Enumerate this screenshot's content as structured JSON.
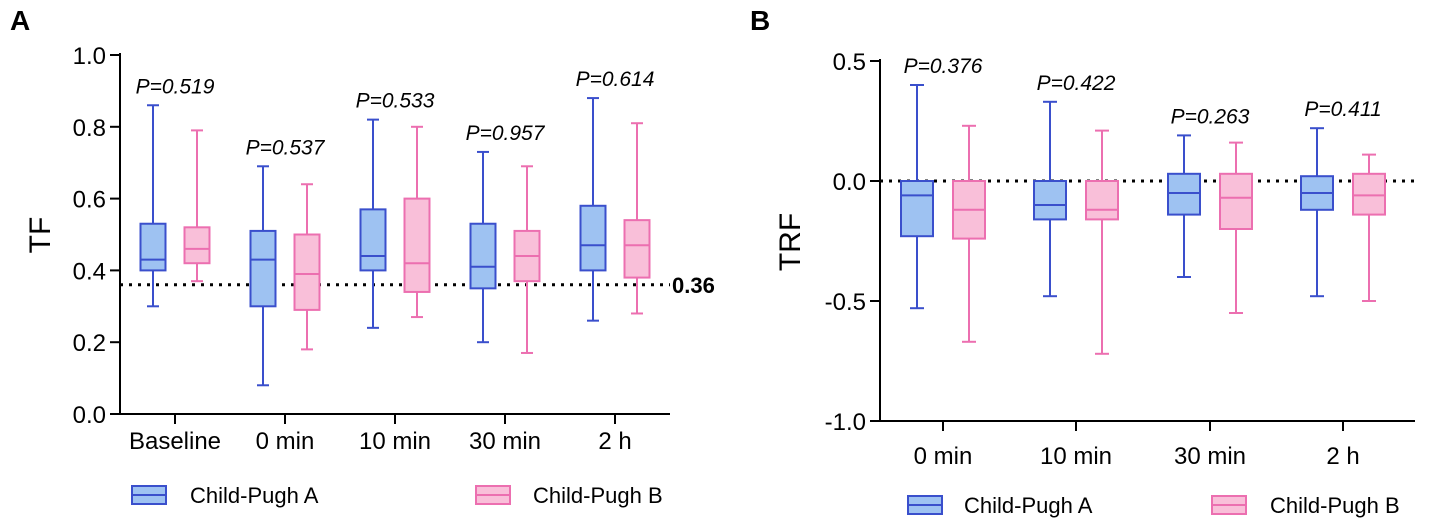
{
  "colors": {
    "group_a_fill": "#9ec2f2",
    "group_a_stroke": "#3a4fcc",
    "group_b_fill": "#f9bfd9",
    "group_b_stroke": "#ec6fb0"
  },
  "legend": {
    "group_a": "Child-Pugh A",
    "group_b": "Child-Pugh B"
  },
  "chart_data": [
    {
      "panel": "A",
      "type": "boxplot",
      "ylabel": "TF",
      "ylim": [
        0.0,
        1.0
      ],
      "yticks": [
        "0.0",
        "0.2",
        "0.4",
        "0.6",
        "0.8",
        "1.0"
      ],
      "yticks_values": [
        0.0,
        0.2,
        0.4,
        0.6,
        0.8,
        1.0
      ],
      "categories": [
        "Baseline",
        "0 min",
        "10 min",
        "30 min",
        "2 h"
      ],
      "p_values": [
        "P=0.519",
        "P=0.537",
        "P=0.533",
        "P=0.957",
        "P=0.614"
      ],
      "reference_line": {
        "value": 0.36,
        "label": "0.36"
      },
      "series": [
        {
          "name": "Child-Pugh A",
          "boxes": [
            {
              "min": 0.3,
              "q1": 0.4,
              "median": 0.43,
              "q3": 0.53,
              "max": 0.86
            },
            {
              "min": 0.08,
              "q1": 0.3,
              "median": 0.43,
              "q3": 0.51,
              "max": 0.69
            },
            {
              "min": 0.24,
              "q1": 0.4,
              "median": 0.44,
              "q3": 0.57,
              "max": 0.82
            },
            {
              "min": 0.2,
              "q1": 0.35,
              "median": 0.41,
              "q3": 0.53,
              "max": 0.73
            },
            {
              "min": 0.26,
              "q1": 0.4,
              "median": 0.47,
              "q3": 0.58,
              "max": 0.88
            }
          ]
        },
        {
          "name": "Child-Pugh B",
          "boxes": [
            {
              "min": 0.37,
              "q1": 0.42,
              "median": 0.46,
              "q3": 0.52,
              "max": 0.79
            },
            {
              "min": 0.18,
              "q1": 0.29,
              "median": 0.39,
              "q3": 0.5,
              "max": 0.64
            },
            {
              "min": 0.27,
              "q1": 0.34,
              "median": 0.42,
              "q3": 0.6,
              "max": 0.8
            },
            {
              "min": 0.17,
              "q1": 0.37,
              "median": 0.44,
              "q3": 0.51,
              "max": 0.69
            },
            {
              "min": 0.28,
              "q1": 0.38,
              "median": 0.47,
              "q3": 0.54,
              "max": 0.81
            }
          ]
        }
      ]
    },
    {
      "panel": "B",
      "type": "boxplot",
      "ylabel": "TRF",
      "ylim": [
        -1.0,
        0.5
      ],
      "yticks": [
        "-1.0",
        "-0.5",
        "0.0",
        "0.5"
      ],
      "yticks_values": [
        -1.0,
        -0.5,
        0.0,
        0.5
      ],
      "categories": [
        "0 min",
        "10 min",
        "30 min",
        "2 h"
      ],
      "p_values": [
        "P=0.376",
        "P=0.422",
        "P=0.263",
        "P=0.411"
      ],
      "reference_line": {
        "value": 0.0,
        "label": ""
      },
      "series": [
        {
          "name": "Child-Pugh A",
          "boxes": [
            {
              "min": -0.53,
              "q1": -0.23,
              "median": -0.06,
              "q3": 0.0,
              "max": 0.4
            },
            {
              "min": -0.48,
              "q1": -0.16,
              "median": -0.1,
              "q3": 0.0,
              "max": 0.33
            },
            {
              "min": -0.4,
              "q1": -0.14,
              "median": -0.05,
              "q3": 0.03,
              "max": 0.19
            },
            {
              "min": -0.48,
              "q1": -0.12,
              "median": -0.05,
              "q3": 0.02,
              "max": 0.22
            }
          ]
        },
        {
          "name": "Child-Pugh B",
          "boxes": [
            {
              "min": -0.67,
              "q1": -0.24,
              "median": -0.12,
              "q3": 0.0,
              "max": 0.23
            },
            {
              "min": -0.72,
              "q1": -0.16,
              "median": -0.12,
              "q3": 0.0,
              "max": 0.21
            },
            {
              "min": -0.55,
              "q1": -0.2,
              "median": -0.07,
              "q3": 0.03,
              "max": 0.16
            },
            {
              "min": -0.5,
              "q1": -0.14,
              "median": -0.06,
              "q3": 0.03,
              "max": 0.11
            }
          ]
        }
      ]
    }
  ]
}
